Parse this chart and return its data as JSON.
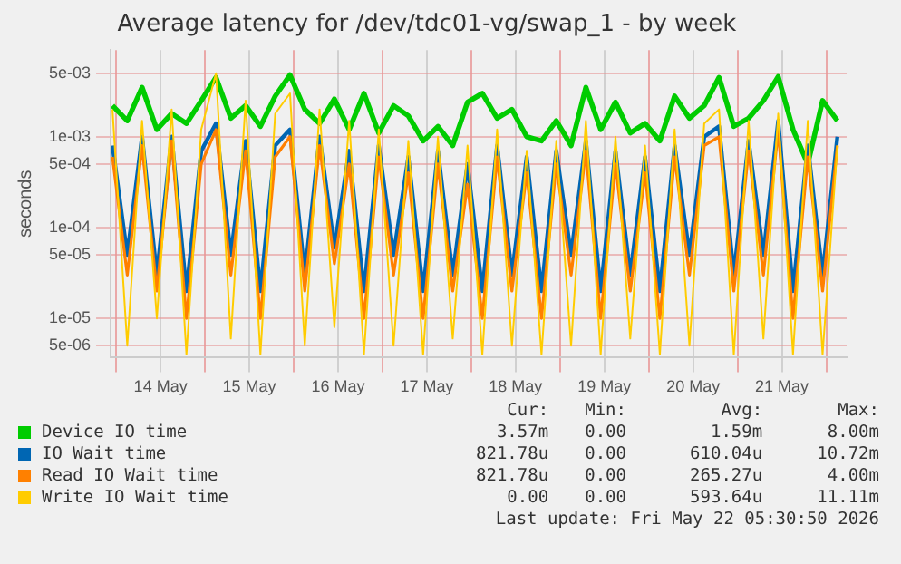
{
  "chart_data": {
    "type": "line",
    "title": "Average latency for /dev/tdc01-vg/swap_1 - by week",
    "ylabel": "seconds",
    "log": "y",
    "grid": true,
    "legend": "bottom",
    "marker": "none",
    "line_style": "solid",
    "x": [
      "2026-05-13T23:00",
      "2026-05-14T03:00",
      "2026-05-14T07:00",
      "2026-05-14T11:00",
      "2026-05-14T15:00",
      "2026-05-14T19:00",
      "2026-05-14T23:00",
      "2026-05-15T03:00",
      "2026-05-15T07:00",
      "2026-05-15T11:00",
      "2026-05-15T15:00",
      "2026-05-15T19:00",
      "2026-05-15T23:00",
      "2026-05-16T03:00",
      "2026-05-16T07:00",
      "2026-05-16T11:00",
      "2026-05-16T15:00",
      "2026-05-16T19:00",
      "2026-05-16T23:00",
      "2026-05-17T03:00",
      "2026-05-17T07:00",
      "2026-05-17T11:00",
      "2026-05-17T15:00",
      "2026-05-17T19:00",
      "2026-05-17T23:00",
      "2026-05-18T03:00",
      "2026-05-18T07:00",
      "2026-05-18T11:00",
      "2026-05-18T15:00",
      "2026-05-18T19:00",
      "2026-05-18T23:00",
      "2026-05-19T03:00",
      "2026-05-19T07:00",
      "2026-05-19T11:00",
      "2026-05-19T15:00",
      "2026-05-19T19:00",
      "2026-05-19T23:00",
      "2026-05-20T03:00",
      "2026-05-20T07:00",
      "2026-05-20T11:00",
      "2026-05-20T15:00",
      "2026-05-20T19:00",
      "2026-05-20T23:00",
      "2026-05-21T03:00",
      "2026-05-21T07:00",
      "2026-05-21T11:00",
      "2026-05-21T15:00",
      "2026-05-21T19:00",
      "2026-05-21T23:00",
      "2026-05-22T03:00"
    ],
    "xlim": [
      "2026-05-13T22:30",
      "2026-05-22T05:30"
    ],
    "xticks": [
      {
        "value": "2026-05-14T00:00",
        "label": null
      },
      {
        "value": "2026-05-14T12:00",
        "label": "14 May"
      },
      {
        "value": "2026-05-15T00:00",
        "label": null
      },
      {
        "value": "2026-05-15T12:00",
        "label": "15 May"
      },
      {
        "value": "2026-05-16T00:00",
        "label": null
      },
      {
        "value": "2026-05-16T12:00",
        "label": "16 May"
      },
      {
        "value": "2026-05-17T00:00",
        "label": null
      },
      {
        "value": "2026-05-17T12:00",
        "label": "17 May"
      },
      {
        "value": "2026-05-18T00:00",
        "label": null
      },
      {
        "value": "2026-05-18T12:00",
        "label": "18 May"
      },
      {
        "value": "2026-05-19T00:00",
        "label": null
      },
      {
        "value": "2026-05-19T12:00",
        "label": "19 May"
      },
      {
        "value": "2026-05-20T00:00",
        "label": null
      },
      {
        "value": "2026-05-20T12:00",
        "label": "20 May"
      },
      {
        "value": "2026-05-21T00:00",
        "label": null
      },
      {
        "value": "2026-05-21T12:00",
        "label": "21 May"
      },
      {
        "value": "2026-05-22T00:00",
        "label": null
      }
    ],
    "ylim": [
      3.7e-06,
      0.009
    ],
    "yticks": [
      {
        "value": 5e-06,
        "label": "5e-06"
      },
      {
        "value": 1e-05,
        "label": "1e-05"
      },
      {
        "value": 5e-05,
        "label": "5e-05"
      },
      {
        "value": 0.0001,
        "label": "1e-04"
      },
      {
        "value": 0.0005,
        "label": "5e-04"
      },
      {
        "value": 0.001,
        "label": "1e-03"
      },
      {
        "value": 0.005,
        "label": "5e-03"
      }
    ],
    "series": [
      {
        "name": "Device IO time",
        "color": "#00cc00",
        "values": [
          0.0022,
          0.0015,
          0.0035,
          0.0012,
          0.0018,
          0.0014,
          0.0025,
          0.0045,
          0.0016,
          0.0022,
          0.0013,
          0.0028,
          0.0048,
          0.002,
          0.0014,
          0.0026,
          0.0012,
          0.003,
          0.0011,
          0.0022,
          0.0017,
          0.0009,
          0.0013,
          0.0008,
          0.0024,
          0.003,
          0.0016,
          0.002,
          0.001,
          0.0009,
          0.0015,
          0.0008,
          0.0035,
          0.0012,
          0.0024,
          0.0011,
          0.0014,
          0.0009,
          0.0028,
          0.0016,
          0.0022,
          0.0045,
          0.0013,
          0.0016,
          0.0025,
          0.0046,
          0.0012,
          0.0005,
          0.0025,
          0.0015
        ]
      },
      {
        "name": "IO Wait time",
        "color": "#0066b3",
        "values": [
          0.0008,
          5e-05,
          0.001,
          3e-05,
          0.001,
          2e-05,
          0.0007,
          0.0014,
          5e-05,
          0.0009,
          2e-05,
          0.0008,
          0.0012,
          3e-05,
          0.001,
          6e-05,
          0.0007,
          2e-05,
          0.0008,
          5e-05,
          0.0006,
          2e-05,
          0.0007,
          3e-05,
          0.0005,
          2e-05,
          0.0008,
          3e-05,
          0.0006,
          2e-05,
          0.0007,
          5e-05,
          0.0009,
          2e-05,
          0.0007,
          3e-05,
          0.0006,
          2e-05,
          0.0008,
          5e-05,
          0.001,
          0.0013,
          3e-05,
          0.0009,
          5e-05,
          0.0015,
          2e-05,
          0.0008,
          3e-05,
          0.001
        ]
      },
      {
        "name": "Read IO Wait time",
        "color": "#ff8000",
        "values": [
          0.0006,
          3e-05,
          0.0008,
          2e-05,
          0.0009,
          1e-05,
          0.0005,
          0.0012,
          3e-05,
          0.0007,
          1e-05,
          0.0006,
          0.001,
          2e-05,
          0.0008,
          4e-05,
          0.0005,
          1e-05,
          0.0006,
          3e-05,
          0.0004,
          1e-05,
          0.0005,
          2e-05,
          0.0003,
          1e-05,
          0.0006,
          2e-05,
          0.0004,
          1e-05,
          0.0005,
          3e-05,
          0.0007,
          1e-05,
          0.0005,
          2e-05,
          0.0004,
          1e-05,
          0.0006,
          3e-05,
          0.0008,
          0.001,
          2e-05,
          0.0007,
          3e-05,
          0.0012,
          1e-05,
          0.0006,
          2e-05,
          0.0008
        ]
      },
      {
        "name": "Write IO Wait time",
        "color": "#ffcc00",
        "values": [
          0.002,
          5e-06,
          0.0015,
          1e-05,
          0.002,
          4e-06,
          0.0012,
          0.005,
          6e-06,
          0.0025,
          4e-06,
          0.0018,
          0.003,
          5e-06,
          0.002,
          8e-06,
          0.0015,
          4e-06,
          0.0012,
          5e-06,
          0.0009,
          4e-06,
          0.001,
          6e-06,
          0.0008,
          4e-06,
          0.0012,
          5e-06,
          0.0007,
          4e-06,
          0.0009,
          5e-06,
          0.0015,
          4e-06,
          0.001,
          6e-06,
          0.0008,
          4e-06,
          0.0012,
          5e-06,
          0.0014,
          0.002,
          4e-06,
          0.0015,
          6e-06,
          0.0018,
          4e-06,
          0.0015,
          4e-06,
          0.0008
        ]
      }
    ],
    "annotations": [
      "Cur:",
      "Min:",
      "Avg:",
      "Max:",
      "3.57m",
      "0.00",
      "1.59m",
      "8.00m",
      "821.78u",
      "0.00",
      "610.04u",
      "10.72m",
      "821.78u",
      "0.00",
      "265.27u",
      "4.00m",
      "0.00",
      "0.00",
      "593.64u",
      "11.11m",
      "Last update: Fri May 22 05:30:50 2026"
    ]
  }
}
